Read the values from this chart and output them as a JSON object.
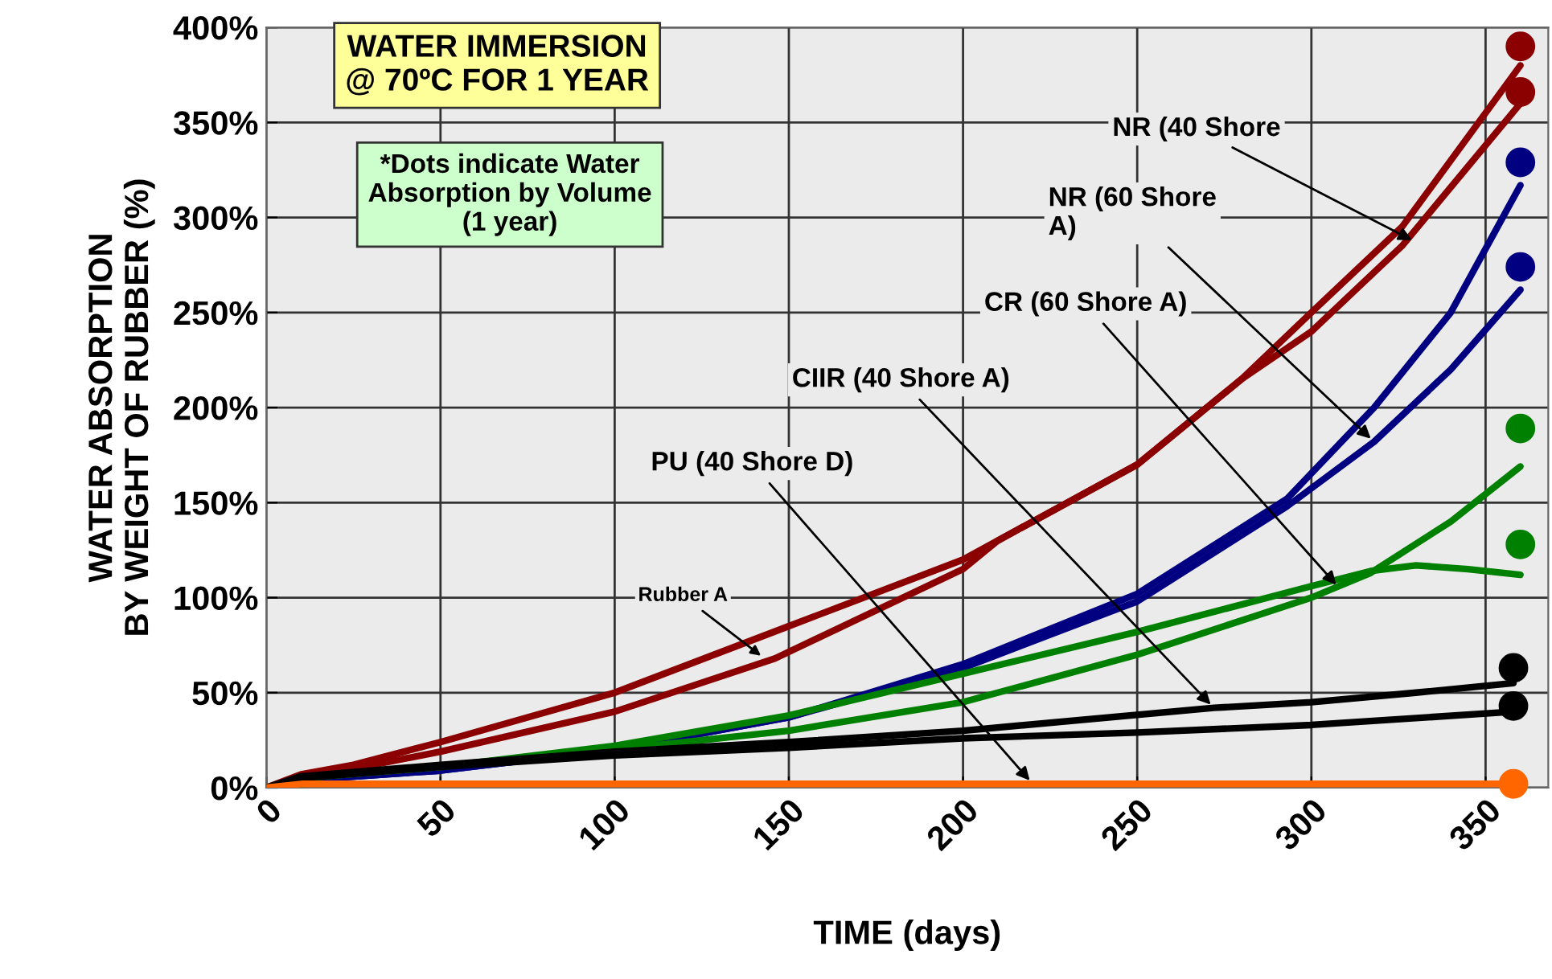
{
  "chart_data": {
    "type": "line",
    "title": "WATER IMMERSION\n@ 70ºC FOR 1 YEAR",
    "xlabel": "TIME (days)",
    "ylabel": "WATER ABSORPTION\nBY WEIGHT OF RUBBER (%)",
    "xlim": [
      0,
      368
    ],
    "xticks": [
      0,
      50,
      100,
      150,
      200,
      250,
      300,
      350
    ],
    "ylim": [
      0,
      400
    ],
    "yticks": [
      {
        "value": 0,
        "label": "0%"
      },
      {
        "value": 50,
        "label": "50%"
      },
      {
        "value": 100,
        "label": "100%"
      },
      {
        "value": 150,
        "label": "150%"
      },
      {
        "value": 200,
        "label": "200%"
      },
      {
        "value": 250,
        "label": "250%"
      },
      {
        "value": 300,
        "label": "300%"
      },
      {
        "value": 350,
        "label": "350%"
      },
      {
        "value": 400,
        "label": "400%"
      }
    ],
    "grid": true,
    "marker": "none",
    "line_style": "solid",
    "series": [
      {
        "type": "line",
        "color": "#8b0000",
        "x": [
          0,
          10,
          25,
          50,
          100,
          150,
          200,
          250,
          280,
          300,
          326,
          360
        ],
        "values": [
          0,
          7,
          12,
          24,
          50,
          85,
          120,
          170,
          215,
          250,
          295,
          380
        ]
      },
      {
        "type": "line",
        "color": "#8b0000",
        "x": [
          0,
          10,
          25,
          50,
          100,
          146,
          200,
          210,
          250,
          280,
          300,
          326,
          360
        ],
        "values": [
          0,
          6,
          10,
          19,
          40,
          68,
          115,
          130,
          170,
          215,
          240,
          285,
          360
        ]
      },
      {
        "type": "line",
        "color": "#000080",
        "x": [
          0,
          10,
          50,
          100,
          150,
          200,
          250,
          293,
          318,
          340,
          360
        ],
        "values": [
          0,
          4,
          9,
          20,
          37,
          65,
          102,
          152,
          200,
          250,
          317
        ]
      },
      {
        "type": "line",
        "color": "#000080",
        "x": [
          0,
          10,
          50,
          100,
          150,
          200,
          250,
          293,
          318,
          340,
          360
        ],
        "values": [
          0,
          4,
          9,
          20,
          37,
          63,
          98,
          148,
          182,
          220,
          262
        ]
      },
      {
        "type": "line",
        "color": "#008000",
        "x": [
          0,
          10,
          50,
          100,
          150,
          200,
          250,
          300,
          317,
          330,
          345,
          360
        ],
        "values": [
          0,
          5,
          11,
          22,
          38,
          60,
          82,
          106,
          114,
          117,
          115,
          112
        ]
      },
      {
        "type": "line",
        "color": "#008000",
        "x": [
          0,
          10,
          50,
          100,
          150,
          200,
          250,
          300,
          317,
          340,
          360
        ],
        "values": [
          0,
          5,
          11,
          20,
          30,
          45,
          70,
          100,
          113,
          140,
          169
        ]
      },
      {
        "type": "line",
        "color": "#000000",
        "x": [
          0,
          10,
          50,
          100,
          150,
          200,
          272,
          300,
          330,
          358
        ],
        "values": [
          0,
          6,
          12,
          19,
          24,
          30,
          42,
          45,
          50,
          55
        ]
      },
      {
        "type": "line",
        "color": "#000000",
        "x": [
          0,
          10,
          50,
          100,
          150,
          200,
          250,
          300,
          358
        ],
        "values": [
          0,
          5,
          11,
          17,
          21,
          26,
          29,
          33,
          40
        ]
      },
      {
        "color": "#ff6600",
        "x": [
          0,
          10,
          100,
          200,
          300,
          358
        ],
        "values": [
          0,
          2,
          2,
          2,
          2,
          2
        ]
      },
      {
        "type": "scatter",
        "marker": "circle",
        "color": "#8b0000",
        "x": [
          360,
          360
        ],
        "values": [
          390,
          366
        ]
      },
      {
        "type": "scatter",
        "marker": "circle",
        "color": "#000080",
        "x": [
          360,
          360
        ],
        "values": [
          329,
          274
        ]
      },
      {
        "type": "scatter",
        "marker": "circle",
        "color": "#008000",
        "x": [
          360,
          360
        ],
        "values": [
          189,
          128
        ]
      },
      {
        "type": "scatter",
        "marker": "circle",
        "color": "#000000",
        "x": [
          358,
          358
        ],
        "values": [
          63,
          43
        ]
      },
      {
        "type": "scatter",
        "marker": "circle",
        "color": "#ff6600",
        "x": [
          358
        ],
        "values": [
          2
        ]
      }
    ],
    "annotations": [
      "*Dots indicate Water\nAbsorption by Volume\n(1 year)",
      {
        "text": "NR (40 Shore",
        "x": 330,
        "y": 287
      },
      {
        "text": "NR (60 Shore\nA)",
        "x": 318,
        "y": 182
      },
      {
        "text": "CR (60 Shore A)",
        "x": 308,
        "y": 105
      },
      {
        "text": "CIIR (40 Shore A)",
        "x": 272,
        "y": 42
      },
      {
        "text": "PU (40 Shore D)",
        "x": 220,
        "y": 2
      },
      {
        "text": "Rubber A",
        "x": 143,
        "y": 68
      }
    ]
  }
}
